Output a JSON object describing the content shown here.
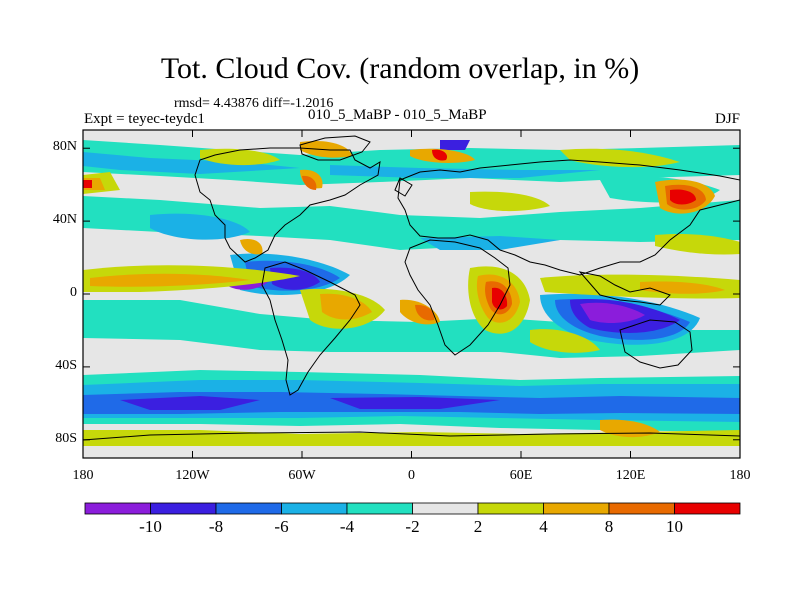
{
  "title": "Tot. Cloud Cov. (random overlap, in %)",
  "stats": {
    "rmsd_label": "rmsd=",
    "rmsd": "4.43876",
    "diff_label": "diff=",
    "diff": "-1.2016"
  },
  "experiment": "Expt = teyec-teydc1",
  "difference": "010_5_MaBP - 010_5_MaBP",
  "season": "DJF",
  "map": {
    "lon_range": [
      -180,
      180
    ],
    "lat_range": [
      -90,
      90
    ],
    "x_ticks": [
      {
        "value": -180,
        "label": "180"
      },
      {
        "value": -120,
        "label": "120W"
      },
      {
        "value": -60,
        "label": "60W"
      },
      {
        "value": 0,
        "label": "0"
      },
      {
        "value": 60,
        "label": "60E"
      },
      {
        "value": 120,
        "label": "120E"
      },
      {
        "value": 180,
        "label": "180"
      }
    ],
    "y_ticks": [
      {
        "value": 80,
        "label": "80N"
      },
      {
        "value": 40,
        "label": "40N"
      },
      {
        "value": 0,
        "label": "0"
      },
      {
        "value": -40,
        "label": "40S"
      },
      {
        "value": -80,
        "label": "80S"
      }
    ],
    "colorbar": {
      "levels": [
        "-10",
        "-8",
        "-6",
        "-4",
        "-2",
        "2",
        "4",
        "8",
        "10"
      ],
      "colors": [
        "#8b1ddb",
        "#3b1fe0",
        "#1f6ae8",
        "#1bb1e6",
        "#22e0c0",
        "#e6e6e6",
        "#c6d80a",
        "#e8a800",
        "#e86a00",
        "#e80000"
      ]
    }
  }
}
